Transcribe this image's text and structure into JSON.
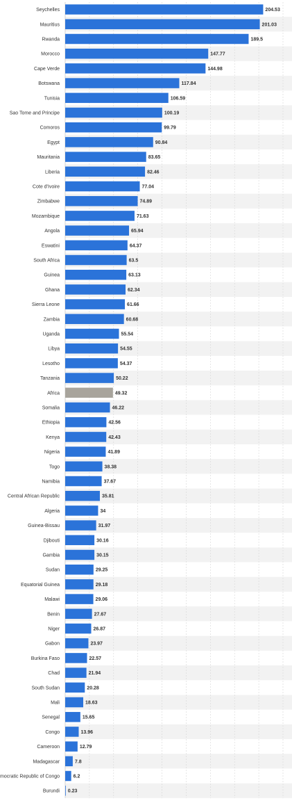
{
  "chart_data": {
    "type": "bar",
    "orientation": "horizontal",
    "categories": [
      "Seychelles",
      "Mauritius",
      "Rwanda",
      "Morocco",
      "Cape Verde",
      "Botswana",
      "Tunisia",
      "Sao Tome and Principe",
      "Comoros",
      "Egypt",
      "Mauritania",
      "Liberia",
      "Cote d'Ivoire",
      "Zimbabwe",
      "Mozambique",
      "Angola",
      "Eswatini",
      "South Africa",
      "Guinea",
      "Ghana",
      "Sierra Leone",
      "Zambia",
      "Uganda",
      "Libya",
      "Lesotho",
      "Tanzania",
      "Africa",
      "Somalia",
      "Ethiopia",
      "Kenya",
      "Nigeria",
      "Togo",
      "Namibia",
      "Central African Republic",
      "Algeria",
      "Guinea-Bissau",
      "Djibouti",
      "Gambia",
      "Sudan",
      "Equatorial Guinea",
      "Malawi",
      "Benin",
      "Niger",
      "Gabon",
      "Burkina Faso",
      "Chad",
      "South Sudan",
      "Mali",
      "Senegal",
      "Congo",
      "Cameroon",
      "Madagascar",
      "Democratic Republic of Congo",
      "Burundi"
    ],
    "values": [
      204.53,
      201.03,
      189.5,
      147.77,
      144.98,
      117.84,
      106.59,
      100.19,
      99.79,
      90.84,
      83.65,
      82.46,
      77.04,
      74.89,
      71.63,
      65.94,
      64.37,
      63.5,
      63.13,
      62.34,
      61.66,
      60.68,
      55.54,
      54.55,
      54.37,
      50.22,
      49.32,
      46.22,
      42.56,
      42.43,
      41.89,
      38.38,
      37.67,
      35.81,
      34,
      31.97,
      30.16,
      30.15,
      29.25,
      29.18,
      29.06,
      27.67,
      26.87,
      23.97,
      22.57,
      21.94,
      20.28,
      18.63,
      15.65,
      13.96,
      12.79,
      7.8,
      6.2,
      0.23
    ],
    "value_labels": [
      "204.53",
      "201.03",
      "189.5",
      "147.77",
      "144.98",
      "117.84",
      "106.59",
      "100.19",
      "99.79",
      "90.84",
      "83.65",
      "82.46",
      "77.04",
      "74.89",
      "71.63",
      "65.94",
      "64.37",
      "63.5",
      "63.13",
      "62.34",
      "61.66",
      "60.68",
      "55.54",
      "54.55",
      "54.37",
      "50.22",
      "49.32",
      "46.22",
      "42.56",
      "42.43",
      "41.89",
      "38.38",
      "37.67",
      "35.81",
      "34",
      "31.97",
      "30.16",
      "30.15",
      "29.25",
      "29.18",
      "29.06",
      "27.67",
      "26.87",
      "23.97",
      "22.57",
      "21.94",
      "20.28",
      "18.63",
      "15.65",
      "13.96",
      "12.79",
      "7.8",
      "6.2",
      "0.23"
    ],
    "highlight": "Africa",
    "xlim": [
      0,
      225
    ],
    "x_ticks": [
      "0",
      "25",
      "50",
      "75",
      "100",
      "125",
      "150",
      "175",
      "200",
      "225"
    ],
    "grid": true,
    "colors": {
      "bar": "#2b73d9",
      "highlight": "#a8a49c",
      "stripe": "#f2f2f2"
    }
  }
}
